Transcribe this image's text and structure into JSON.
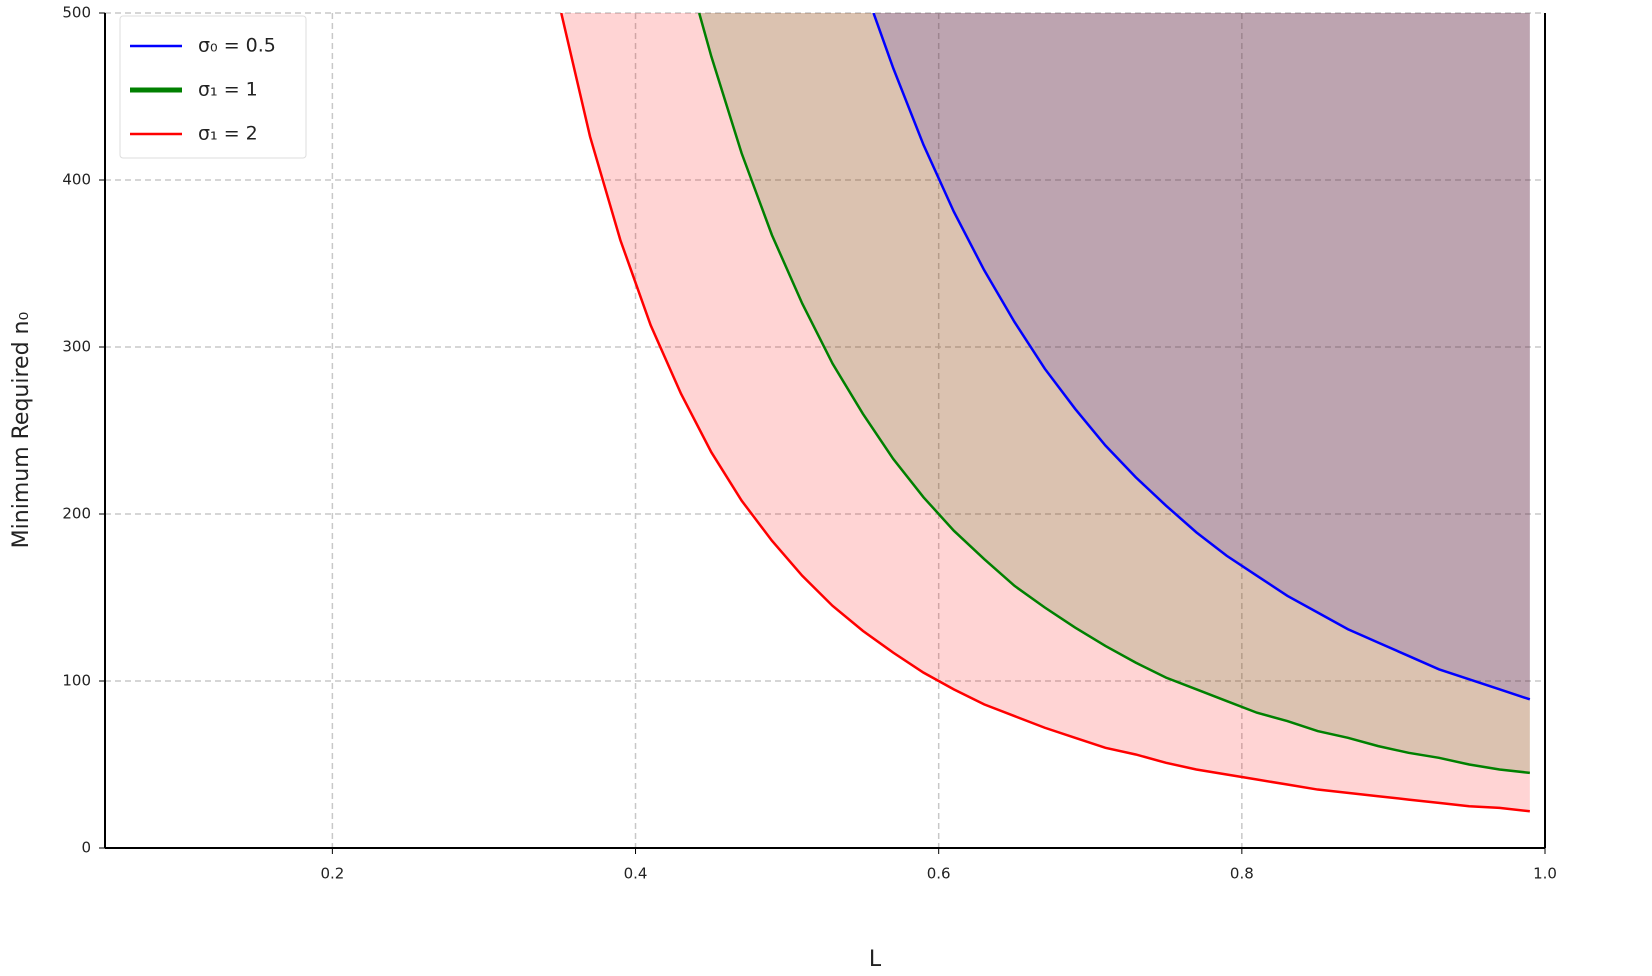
{
  "chart_data": {
    "type": "line",
    "x_label": "L",
    "y_label": "Minimum Required n₀",
    "xlim": [
      0.05,
      1.0
    ],
    "ylim": [
      0,
      500
    ],
    "xticks": [
      0.2,
      0.4,
      0.6,
      0.8,
      {
        "value": 1.0,
        "label": "1.0"
      }
    ],
    "yticks": [
      0,
      100,
      200,
      300,
      400,
      500
    ],
    "grid": true,
    "legend": "upper left",
    "fill_above": true,
    "series": [
      {
        "name": "σ₀ = 0.5",
        "color": "#0000ff",
        "x": [
          0.557,
          0.57,
          0.59,
          0.61,
          0.63,
          0.65,
          0.67,
          0.69,
          0.71,
          0.73,
          0.75,
          0.77,
          0.79,
          0.81,
          0.83,
          0.85,
          0.87,
          0.89,
          0.91,
          0.93,
          0.95,
          0.97,
          0.99
        ],
        "values": [
          500,
          467,
          421,
          381,
          346,
          315,
          287,
          263,
          241,
          222,
          205,
          189,
          175,
          163,
          151,
          141,
          131,
          123,
          115,
          107,
          101,
          95,
          89
        ]
      },
      {
        "name": "σ₁ = 1",
        "color": "#008000",
        "x": [
          0.442,
          0.45,
          0.47,
          0.49,
          0.51,
          0.53,
          0.55,
          0.57,
          0.59,
          0.61,
          0.63,
          0.65,
          0.67,
          0.69,
          0.71,
          0.73,
          0.75,
          0.77,
          0.79,
          0.81,
          0.83,
          0.85,
          0.87,
          0.89,
          0.91,
          0.93,
          0.95,
          0.97,
          0.99
        ],
        "values": [
          500,
          474,
          416,
          367,
          326,
          290,
          260,
          233,
          210,
          190,
          173,
          157,
          144,
          132,
          121,
          111,
          102,
          95,
          88,
          81,
          76,
          70,
          66,
          61,
          57,
          54,
          50,
          47,
          45
        ]
      },
      {
        "name": "σ₁ = 2",
        "color": "#ff0000",
        "x": [
          0.351,
          0.37,
          0.39,
          0.41,
          0.43,
          0.45,
          0.47,
          0.49,
          0.51,
          0.53,
          0.55,
          0.57,
          0.59,
          0.61,
          0.63,
          0.65,
          0.67,
          0.69,
          0.71,
          0.73,
          0.75,
          0.77,
          0.79,
          0.81,
          0.83,
          0.85,
          0.87,
          0.89,
          0.91,
          0.93,
          0.95,
          0.97,
          0.99
        ],
        "values": [
          500,
          426,
          364,
          313,
          272,
          237,
          208,
          184,
          163,
          145,
          130,
          117,
          105,
          95,
          86,
          79,
          72,
          66,
          60,
          56,
          51,
          47,
          44,
          41,
          38,
          35,
          33,
          31,
          29,
          27,
          25,
          24,
          22
        ]
      }
    ]
  }
}
